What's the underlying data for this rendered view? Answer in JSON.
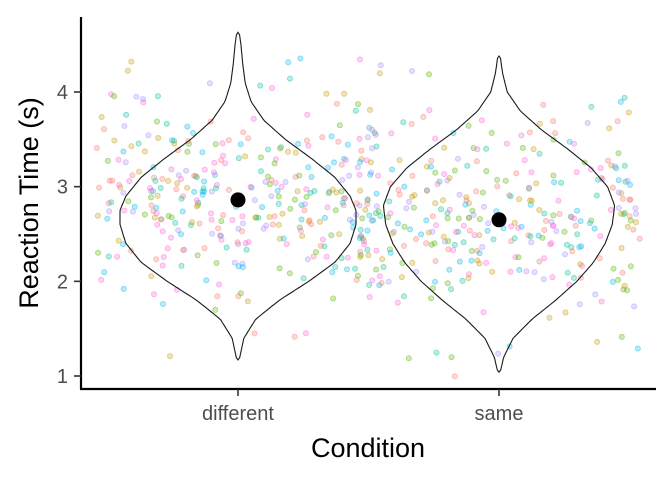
{
  "chart_data": {
    "type": "violin",
    "xlabel": "Condition",
    "ylabel": "Reaction Time (s)",
    "categories": [
      "different",
      "same"
    ],
    "ylim": [
      0.85,
      4.75
    ],
    "yticks": [
      1,
      2,
      3,
      4
    ],
    "grid": false,
    "legend": "none",
    "point_colors": [
      "#F8766D",
      "#C49A00",
      "#53B400",
      "#00C094",
      "#00B6EB",
      "#A58AFF",
      "#FB61D7"
    ],
    "groups": [
      {
        "name": "different",
        "mean": 2.86,
        "min": 1.17,
        "max": 4.63,
        "density_profile": [
          [
            1.17,
            0.01
          ],
          [
            1.4,
            0.05
          ],
          [
            1.6,
            0.15
          ],
          [
            1.8,
            0.35
          ],
          [
            2.0,
            0.6
          ],
          [
            2.2,
            0.82
          ],
          [
            2.4,
            0.95
          ],
          [
            2.6,
            1.0
          ],
          [
            2.75,
            1.0
          ],
          [
            2.9,
            0.95
          ],
          [
            3.1,
            0.82
          ],
          [
            3.3,
            0.62
          ],
          [
            3.5,
            0.4
          ],
          [
            3.7,
            0.22
          ],
          [
            3.9,
            0.11
          ],
          [
            4.1,
            0.06
          ],
          [
            4.3,
            0.04
          ],
          [
            4.5,
            0.025
          ],
          [
            4.63,
            0.01
          ]
        ]
      },
      {
        "name": "same",
        "mean": 2.65,
        "min": 1.04,
        "max": 4.38,
        "density_profile": [
          [
            1.04,
            0.01
          ],
          [
            1.2,
            0.04
          ],
          [
            1.4,
            0.12
          ],
          [
            1.6,
            0.28
          ],
          [
            1.8,
            0.48
          ],
          [
            2.0,
            0.66
          ],
          [
            2.2,
            0.8
          ],
          [
            2.4,
            0.9
          ],
          [
            2.6,
            0.96
          ],
          [
            2.8,
            0.98
          ],
          [
            3.0,
            0.92
          ],
          [
            3.2,
            0.78
          ],
          [
            3.4,
            0.58
          ],
          [
            3.6,
            0.36
          ],
          [
            3.8,
            0.18
          ],
          [
            4.0,
            0.07
          ],
          [
            4.2,
            0.03
          ],
          [
            4.38,
            0.01
          ]
        ]
      }
    ]
  }
}
